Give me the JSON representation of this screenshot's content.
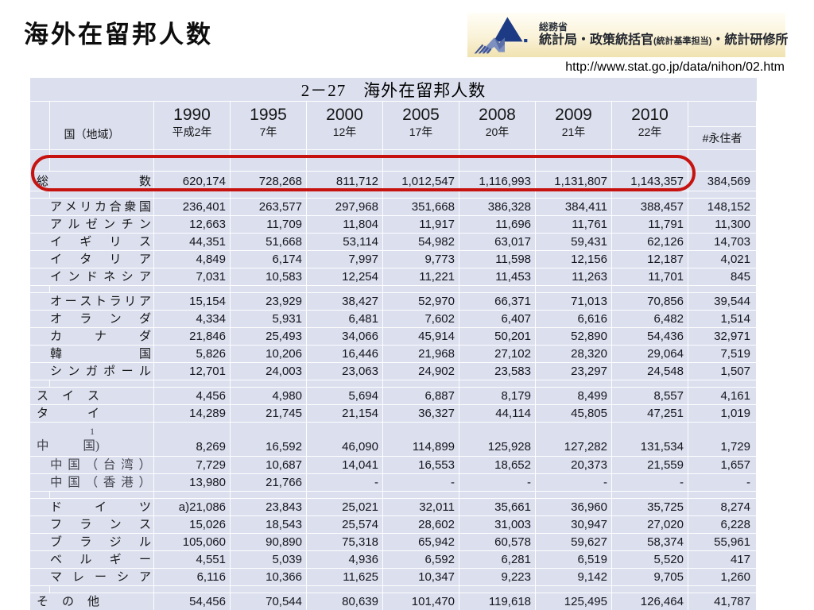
{
  "page": {
    "title": "海外在留邦人数",
    "url": "http://www.stat.go.jp/data/nihon/02.htm"
  },
  "logo": {
    "ministry": "総務省",
    "org_main": "統計局・政策統括官",
    "org_paren": "(統計基準担当)",
    "org_tail": "・統計研修所",
    "mark_colors": {
      "dark_navy": "#1d3a85",
      "mid_blue": "#5a6fa8",
      "light_blue": "#7e90bf"
    },
    "bg_gradient": [
      "#fffef7",
      "#f0e2b0"
    ]
  },
  "highlight": {
    "shape": "rounded-oval",
    "color": "#c61310",
    "target": "total-row"
  },
  "colors": {
    "table_bg": "#dbdfee",
    "gridline": "#ffffff",
    "text": "#161616"
  },
  "table": {
    "caption": "2－27　海外在留邦人数",
    "col_header": "国（地域）",
    "years": [
      {
        "year": "1990",
        "era": "平成2年"
      },
      {
        "year": "1995",
        "era": "7年"
      },
      {
        "year": "2000",
        "era": "12年"
      },
      {
        "year": "2005",
        "era": "17年"
      },
      {
        "year": "2008",
        "era": "20年"
      },
      {
        "year": "2009",
        "era": "21年"
      },
      {
        "year": "2010",
        "era": "22年"
      }
    ],
    "last_col": "#永住者",
    "total_row": {
      "label": "総数",
      "lead": true,
      "values": [
        "620,174",
        "728,268",
        "811,712",
        "1,012,547",
        "1,116,993",
        "1,131,807",
        "1,143,357"
      ],
      "perm": "384,569"
    },
    "groups": [
      {
        "rows": [
          {
            "label": "アメリカ合衆国",
            "values": [
              "236,401",
              "263,577",
              "297,968",
              "351,668",
              "386,328",
              "384,411",
              "388,457"
            ],
            "perm": "148,152"
          },
          {
            "label": "アルゼンチン",
            "values": [
              "12,663",
              "11,709",
              "11,804",
              "11,917",
              "11,696",
              "11,761",
              "11,791"
            ],
            "perm": "11,300"
          },
          {
            "label": "イギリス",
            "values": [
              "44,351",
              "51,668",
              "53,114",
              "54,982",
              "63,017",
              "59,431",
              "62,126"
            ],
            "perm": "14,703"
          },
          {
            "label": "イタリア",
            "values": [
              "4,849",
              "6,174",
              "7,997",
              "9,773",
              "11,598",
              "12,156",
              "12,187"
            ],
            "perm": "4,021"
          },
          {
            "label": "インドネシア",
            "values": [
              "7,031",
              "10,583",
              "12,254",
              "11,221",
              "11,453",
              "11,263",
              "11,701"
            ],
            "perm": "845"
          }
        ]
      },
      {
        "rows": [
          {
            "label": "オーストラリア",
            "values": [
              "15,154",
              "23,929",
              "38,427",
              "52,970",
              "66,371",
              "71,013",
              "70,856"
            ],
            "perm": "39,544"
          },
          {
            "label": "オランダ",
            "values": [
              "4,334",
              "5,931",
              "6,481",
              "7,602",
              "6,407",
              "6,616",
              "6,482"
            ],
            "perm": "1,514"
          },
          {
            "label": "カナダ",
            "values": [
              "21,846",
              "25,493",
              "34,066",
              "45,914",
              "50,201",
              "52,890",
              "54,436"
            ],
            "perm": "32,971"
          },
          {
            "label": "韓国",
            "values": [
              "5,826",
              "10,206",
              "16,446",
              "21,968",
              "27,102",
              "28,320",
              "29,064"
            ],
            "perm": "7,519"
          },
          {
            "label": "シンガポール",
            "values": [
              "12,701",
              "24,003",
              "23,063",
              "24,902",
              "23,583",
              "23,297",
              "24,548"
            ],
            "perm": "1,507"
          }
        ]
      },
      {
        "rows": [
          {
            "label": "スイス",
            "lead": true,
            "narrow": true,
            "values": [
              "4,456",
              "4,980",
              "5,694",
              "6,887",
              "8,179",
              "8,499",
              "8,557"
            ],
            "perm": "4,161"
          },
          {
            "label": "タイ",
            "lead": true,
            "narrow": true,
            "values": [
              "14,289",
              "21,745",
              "21,154",
              "36,327",
              "44,114",
              "45,805",
              "47,251"
            ],
            "perm": "1,019"
          },
          {
            "label": "中国1)",
            "split": [
              "中",
              "国)"
            ],
            "sup": "1",
            "lead": true,
            "narrow": true,
            "serif": true,
            "values": [
              "8,269",
              "16,592",
              "46,090",
              "114,899",
              "125,928",
              "127,282",
              "131,534"
            ],
            "perm": "1,729"
          },
          {
            "label": "中国（台湾）",
            "serif": true,
            "values": [
              "7,729",
              "10,687",
              "14,041",
              "16,553",
              "18,652",
              "20,373",
              "21,559"
            ],
            "perm": "1,657"
          },
          {
            "label": "中国（香港）",
            "serif": true,
            "values": [
              "13,980",
              "21,766",
              "-",
              "-",
              "-",
              "-",
              "-"
            ],
            "perm": "-"
          }
        ]
      },
      {
        "rows": [
          {
            "label": "ドイツ",
            "values": [
              "a)21,086",
              "23,843",
              "25,021",
              "32,011",
              "35,661",
              "36,960",
              "35,725"
            ],
            "perm": "8,274"
          },
          {
            "label": "フランス",
            "values": [
              "15,026",
              "18,543",
              "25,574",
              "28,602",
              "31,003",
              "30,947",
              "27,020"
            ],
            "perm": "6,228"
          },
          {
            "label": "ブラジル",
            "values": [
              "105,060",
              "90,890",
              "75,318",
              "65,942",
              "60,578",
              "59,627",
              "58,374"
            ],
            "perm": "55,961"
          },
          {
            "label": "ベルギー",
            "values": [
              "4,551",
              "5,039",
              "4,936",
              "6,592",
              "6,281",
              "6,519",
              "5,520"
            ],
            "perm": "417"
          },
          {
            "label": "マレーシア",
            "values": [
              "6,116",
              "10,366",
              "11,625",
              "10,347",
              "9,223",
              "9,142",
              "9,705"
            ],
            "perm": "1,260"
          }
        ]
      },
      {
        "rows": [
          {
            "label": "その他",
            "lead": true,
            "narrow": true,
            "values": [
              "54,456",
              "70,544",
              "80,639",
              "101,470",
              "119,618",
              "125,495",
              "126,464"
            ],
            "perm": "41,787"
          }
        ]
      }
    ]
  }
}
